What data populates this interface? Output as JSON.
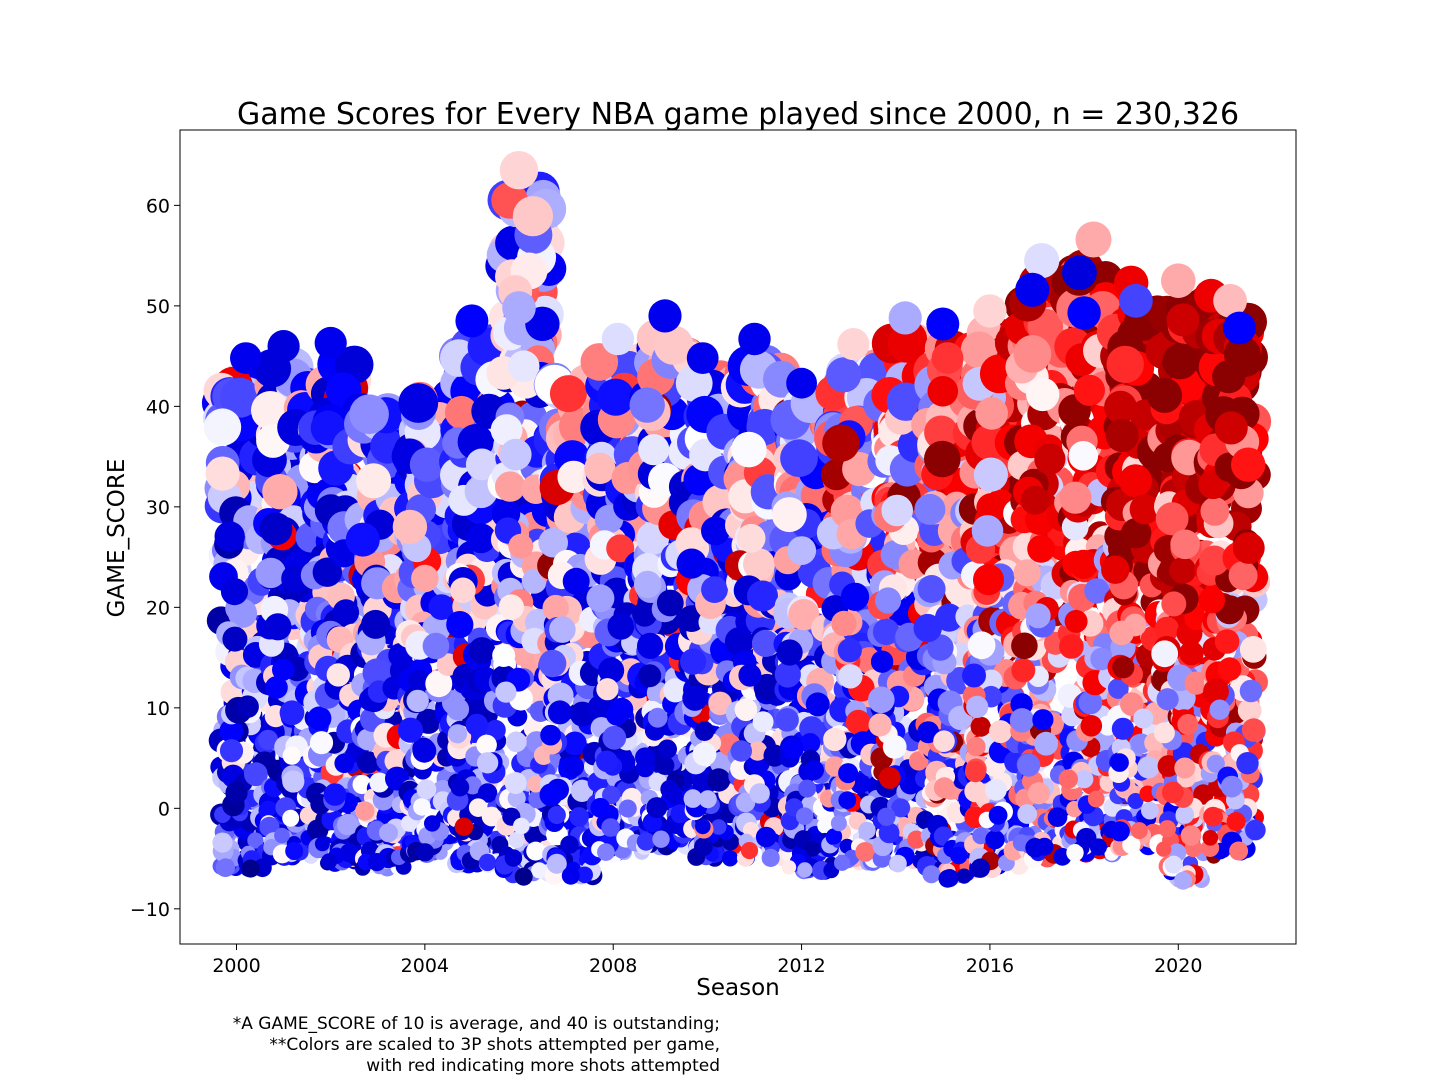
{
  "chart_data": {
    "type": "scatter",
    "title": "Game Scores for Every NBA game played since 2000, n = 230,326",
    "xlabel": "Season",
    "ylabel": "GAME_SCORE",
    "xlim": [
      1998.8,
      2022.5
    ],
    "ylim": [
      -13.5,
      67.5
    ],
    "x_ticks": [
      2000,
      2004,
      2008,
      2012,
      2016,
      2020
    ],
    "y_ticks": [
      -10,
      0,
      10,
      20,
      30,
      40,
      50,
      60
    ],
    "grid": false,
    "legend": "none",
    "color_scale": {
      "low_color": "#00008b",
      "mid_low_color": "#0000ff",
      "mid_color": "#ffffff",
      "high_color": "#ff0000",
      "max_color": "#8b0000",
      "meaning": "3P shots attempted per game"
    },
    "season_ranges": [
      {
        "season": 2000,
        "min": -6.0,
        "max": 44.8,
        "redness": 0.08
      },
      {
        "season": 2001,
        "min": -4.8,
        "max": 46.0,
        "redness": 0.1
      },
      {
        "season": 2002,
        "min": -5.5,
        "max": 46.3,
        "redness": 0.12
      },
      {
        "season": 2003,
        "min": -6.0,
        "max": 42.0,
        "redness": 0.14
      },
      {
        "season": 2004,
        "min": -4.5,
        "max": 43.0,
        "redness": 0.14
      },
      {
        "season": 2005,
        "min": -5.5,
        "max": 48.5,
        "redness": 0.16
      },
      {
        "season": 2006,
        "min": -6.8,
        "max": 63.5,
        "redness": 0.18
      },
      {
        "season": 2007,
        "min": -6.7,
        "max": 45.0,
        "redness": 0.18
      },
      {
        "season": 2008,
        "min": -4.5,
        "max": 46.7,
        "redness": 0.16
      },
      {
        "season": 2009,
        "min": -4.0,
        "max": 49.0,
        "redness": 0.14
      },
      {
        "season": 2010,
        "min": -5.0,
        "max": 44.8,
        "redness": 0.14
      },
      {
        "season": 2011,
        "min": -5.0,
        "max": 46.7,
        "redness": 0.16
      },
      {
        "season": 2012,
        "min": -6.2,
        "max": 42.3,
        "redness": 0.18
      },
      {
        "season": 2013,
        "min": -5.5,
        "max": 46.2,
        "redness": 0.24
      },
      {
        "season": 2014,
        "min": -5.5,
        "max": 48.8,
        "redness": 0.3
      },
      {
        "season": 2015,
        "min": -7.0,
        "max": 48.2,
        "redness": 0.36
      },
      {
        "season": 2016,
        "min": -6.0,
        "max": 49.5,
        "redness": 0.42
      },
      {
        "season": 2017,
        "min": -5.0,
        "max": 54.5,
        "redness": 0.48
      },
      {
        "season": 2018,
        "min": -4.5,
        "max": 56.6,
        "redness": 0.54
      },
      {
        "season": 2019,
        "min": -4.0,
        "max": 52.3,
        "redness": 0.58
      },
      {
        "season": 2020,
        "min": -7.2,
        "max": 52.5,
        "redness": 0.62
      },
      {
        "season": 2021,
        "min": -4.8,
        "max": 50.5,
        "redness": 0.64
      }
    ],
    "highlights": [
      {
        "x": 2000.2,
        "y": 44.8,
        "color": "#0000ee"
      },
      {
        "x": 2001.0,
        "y": 46.0,
        "color": "#0000dd"
      },
      {
        "x": 2002.0,
        "y": 46.3,
        "color": "#0000ee"
      },
      {
        "x": 2005.0,
        "y": 48.5,
        "color": "#0000ff"
      },
      {
        "x": 2006.0,
        "y": 63.5,
        "color": "#ffd4d4"
      },
      {
        "x": 2006.0,
        "y": 49.8,
        "color": "#aaaaff"
      },
      {
        "x": 2008.1,
        "y": 46.7,
        "color": "#ddddff"
      },
      {
        "x": 2009.1,
        "y": 49.0,
        "color": "#0000ee"
      },
      {
        "x": 2009.9,
        "y": 44.8,
        "color": "#0000ee"
      },
      {
        "x": 2011.0,
        "y": 46.7,
        "color": "#0000ee"
      },
      {
        "x": 2012.0,
        "y": 42.3,
        "color": "#0000ee"
      },
      {
        "x": 2013.1,
        "y": 46.2,
        "color": "#ffd4d4"
      },
      {
        "x": 2014.2,
        "y": 48.8,
        "color": "#aaaaff"
      },
      {
        "x": 2015.0,
        "y": 48.2,
        "color": "#0000ff"
      },
      {
        "x": 2015.1,
        "y": 44.8,
        "color": "#ff3333"
      },
      {
        "x": 2015.0,
        "y": 41.5,
        "color": "#ee0000"
      },
      {
        "x": 2016.0,
        "y": 49.5,
        "color": "#ffd4d4"
      },
      {
        "x": 2017.1,
        "y": 54.5,
        "color": "#ddddff"
      },
      {
        "x": 2016.9,
        "y": 51.6,
        "color": "#0000ee"
      },
      {
        "x": 2017.9,
        "y": 53.3,
        "color": "#0000dd"
      },
      {
        "x": 2018.2,
        "y": 56.6,
        "color": "#ffaaaa"
      },
      {
        "x": 2018.0,
        "y": 49.3,
        "color": "#0000ff"
      },
      {
        "x": 2019.0,
        "y": 52.3,
        "color": "#ee0000"
      },
      {
        "x": 2019.1,
        "y": 50.5,
        "color": "#4444ff"
      },
      {
        "x": 2020.0,
        "y": 52.5,
        "color": "#ffaaaa"
      },
      {
        "x": 2020.1,
        "y": 48.6,
        "color": "#cc0000"
      },
      {
        "x": 2020.7,
        "y": 51.0,
        "color": "#ee0000"
      },
      {
        "x": 2021.1,
        "y": 50.5,
        "color": "#ffbbbb"
      },
      {
        "x": 2021.3,
        "y": 47.8,
        "color": "#0000ff"
      },
      {
        "x": 2019.9,
        "y": -5.6,
        "color": "#ddddff"
      },
      {
        "x": 2020.1,
        "y": -7.2,
        "color": "#aaaaff"
      },
      {
        "x": 2007.1,
        "y": -6.7,
        "color": "#0000ee"
      },
      {
        "x": 2006.1,
        "y": -6.8,
        "color": "#00008b"
      },
      {
        "x": 2000.3,
        "y": -6.0,
        "color": "#00008b"
      },
      {
        "x": 2015.1,
        "y": -7.0,
        "color": "#0000dd"
      }
    ]
  },
  "footnote": {
    "line1": "*A GAME_SCORE of 10 is average, and 40 is outstanding;",
    "line2": "**Colors are scaled to 3P shots attempted per game,",
    "line3": "with red indicating more shots attempted"
  }
}
